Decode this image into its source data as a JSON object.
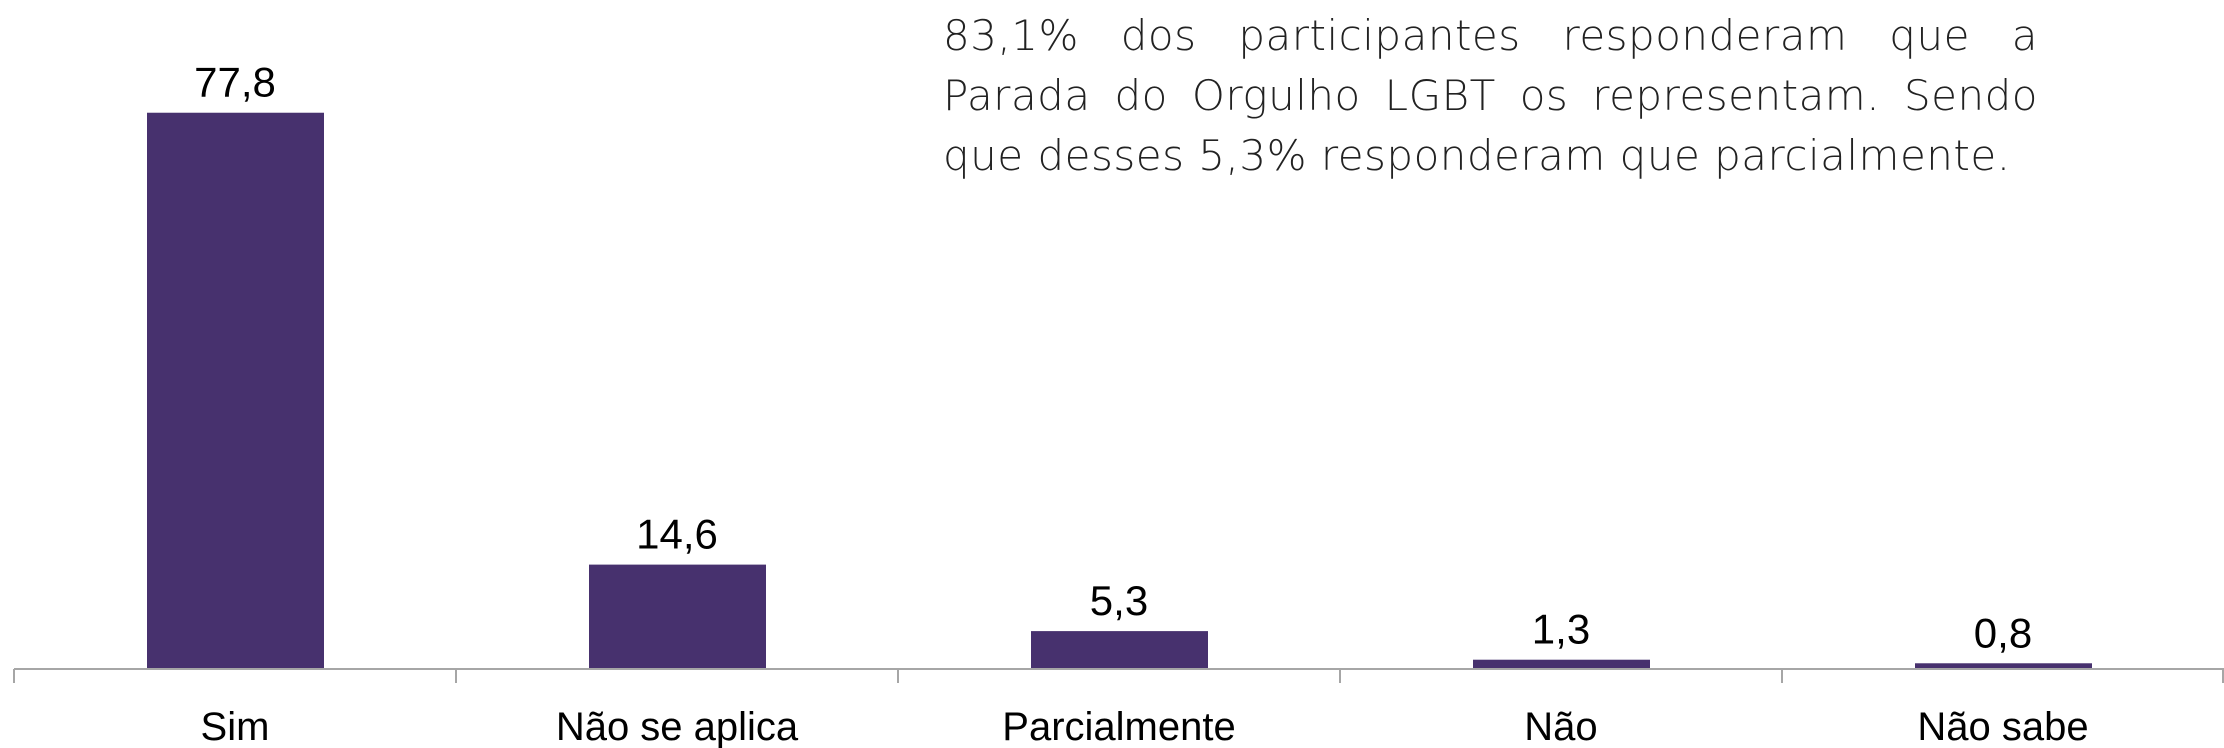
{
  "chart_data": {
    "type": "bar",
    "annotation": "83,1% dos participantes responderam que a Parada do Orgulho LGBT os representam. Sendo que desses 5,3% responderam que parcialmente.",
    "categories": [
      "Sim",
      "Não se aplica",
      "Parcialmente",
      "Não",
      "Não sabe"
    ],
    "values": [
      77.8,
      14.6,
      5.3,
      1.3,
      0.8
    ],
    "value_labels": [
      "77,8",
      "14,6",
      "5,3",
      "1,3",
      "0,8"
    ],
    "color": "#47316e",
    "ylim": [
      0,
      80
    ]
  }
}
